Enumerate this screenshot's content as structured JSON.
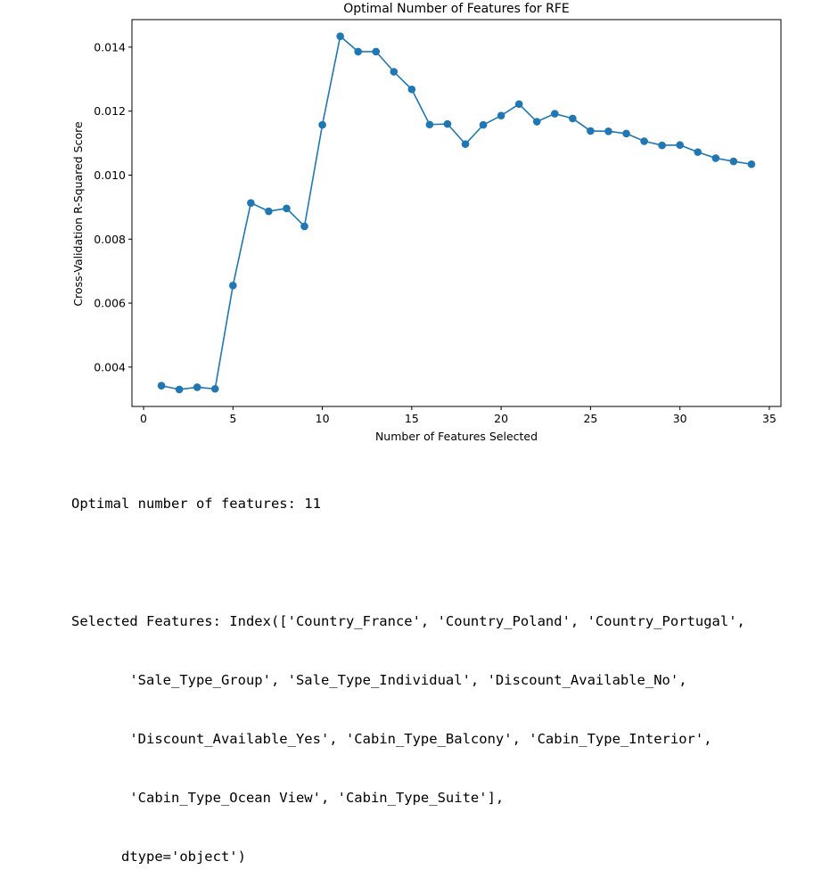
{
  "chart_data": {
    "type": "line",
    "title": "Optimal Number of Features for RFE",
    "xlabel": "Number of Features Selected",
    "ylabel": "Cross-Validation R-Squared Score",
    "x": [
      1,
      2,
      3,
      4,
      5,
      6,
      7,
      8,
      9,
      10,
      11,
      12,
      13,
      14,
      15,
      16,
      17,
      18,
      19,
      20,
      21,
      22,
      23,
      24,
      25,
      26,
      27,
      28,
      29,
      30,
      31,
      32,
      33,
      34
    ],
    "series": [
      {
        "values": [
          0.00342,
          0.0033,
          0.00337,
          0.00332,
          0.00655,
          0.00913,
          0.00887,
          0.00896,
          0.0084,
          0.01157,
          0.01434,
          0.01386,
          0.01386,
          0.01323,
          0.01268,
          0.01158,
          0.0116,
          0.01097,
          0.01157,
          0.01186,
          0.01222,
          0.01167,
          0.01192,
          0.01177,
          0.01138,
          0.01137,
          0.0113,
          0.01106,
          0.01093,
          0.01094,
          0.01072,
          0.01053,
          0.01043,
          0.01034
        ]
      }
    ],
    "xlim": [
      -0.65,
      35.65
    ],
    "ylim": [
      0.00277,
      0.01486
    ],
    "xticks": [
      0,
      5,
      10,
      15,
      20,
      25,
      30,
      35
    ],
    "xtick_labels": [
      "0",
      "5",
      "10",
      "15",
      "20",
      "25",
      "30",
      "35"
    ],
    "yticks": [
      0.004,
      0.006,
      0.008,
      0.01,
      0.012,
      0.014
    ],
    "ytick_labels": [
      "0.004",
      "0.006",
      "0.008",
      "0.010",
      "0.012",
      "0.014"
    ],
    "grid": false,
    "color": "#1f77b4"
  },
  "output": {
    "lines": [
      "Optimal number of features: 11",
      "",
      "Selected Features: Index(['Country_France', 'Country_Poland', 'Country_Portugal',",
      "       'Sale_Type_Group', 'Sale_Type_Individual', 'Discount_Available_No',",
      "       'Discount_Available_Yes', 'Cabin_Type_Balcony', 'Cabin_Type_Interior',",
      "       'Cabin_Type_Ocean View', 'Cabin_Type_Suite'],",
      "      dtype='object')"
    ]
  }
}
